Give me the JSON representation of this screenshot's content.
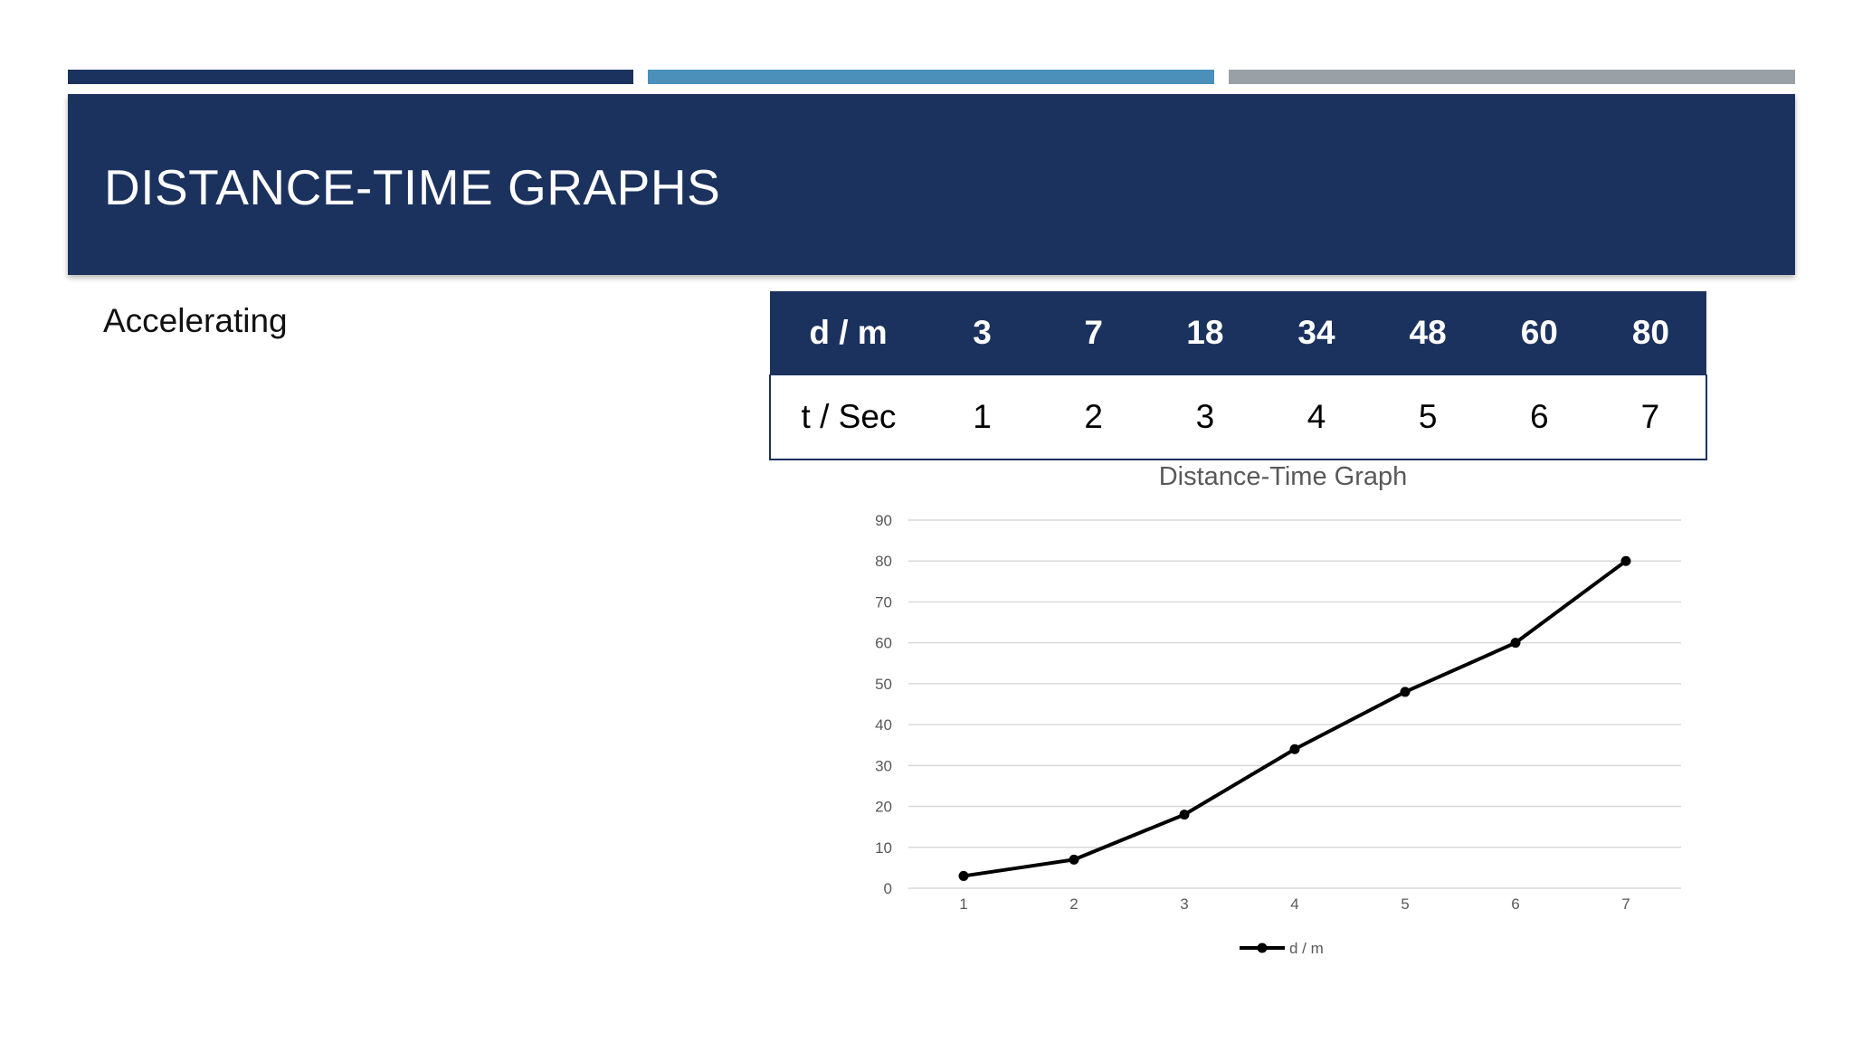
{
  "slide": {
    "title": "DISTANCE-TIME GRAPHS",
    "subtitle": "Accelerating"
  },
  "table": {
    "rows": [
      [
        "d / m",
        "3",
        "7",
        "18",
        "34",
        "48",
        "60",
        "80"
      ],
      [
        "t / Sec",
        "1",
        "2",
        "3",
        "4",
        "5",
        "6",
        "7"
      ]
    ]
  },
  "chart_data": {
    "type": "line",
    "title": "Distance-Time Graph",
    "xlabel": "",
    "ylabel": "",
    "categories": [
      "1",
      "2",
      "3",
      "4",
      "5",
      "6",
      "7"
    ],
    "series": [
      {
        "name": "d / m",
        "values": [
          3,
          7,
          18,
          34,
          48,
          60,
          80
        ]
      }
    ],
    "ylim": [
      0,
      90
    ],
    "yticks": [
      0,
      10,
      20,
      30,
      40,
      50,
      60,
      70,
      80,
      90
    ],
    "grid": true,
    "legend": "bottom",
    "colors": {
      "line": "#000000",
      "grid": "#d9d9d9",
      "text": "#595959"
    }
  },
  "colors": {
    "navy": "#1c325e",
    "blue": "#4a90bb",
    "gray": "#99a0a6"
  }
}
